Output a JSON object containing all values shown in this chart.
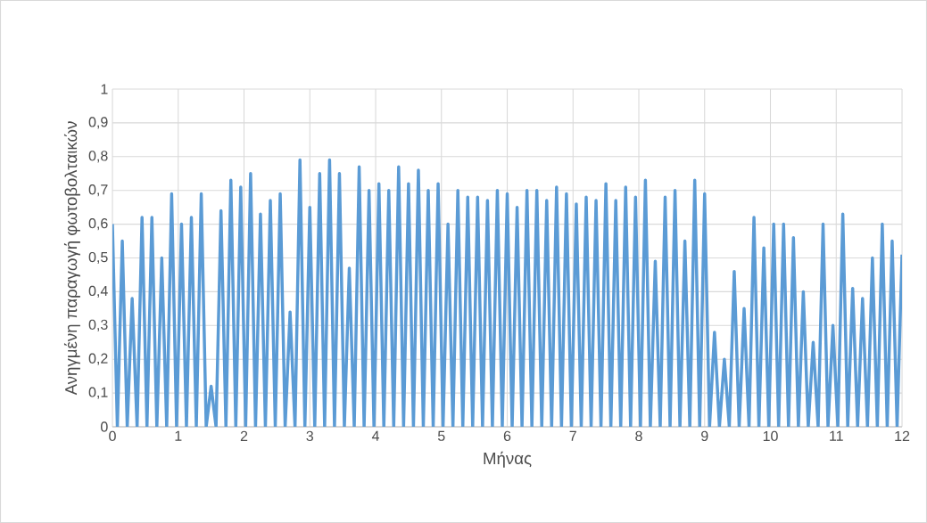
{
  "chart_data": {
    "type": "line",
    "xlabel": "Μήνας",
    "ylabel": "Ανηγμένη παραγωγή φωτοβολταικών",
    "xlim": [
      0,
      12
    ],
    "xticks": [
      0,
      1,
      2,
      3,
      4,
      5,
      6,
      7,
      8,
      9,
      10,
      11,
      12
    ],
    "ylim": [
      0,
      1
    ],
    "yticks": [
      0,
      {
        "value": 0.1,
        "label": "0,1"
      },
      {
        "value": 0.2,
        "label": "0,2"
      },
      {
        "value": 0.3,
        "label": "0,3"
      },
      {
        "value": 0.4,
        "label": "0,4"
      },
      {
        "value": 0.5,
        "label": "0,5"
      },
      {
        "value": 0.6,
        "label": "0,6"
      },
      {
        "value": 0.7,
        "label": "0,7"
      },
      {
        "value": 0.8,
        "label": "0,8"
      },
      {
        "value": 0.9,
        "label": "0,9"
      },
      1
    ],
    "grid": true,
    "marker": "none",
    "line_style": "solid",
    "x": [
      0,
      0.075,
      0.15,
      0.225,
      0.3,
      0.375,
      0.45,
      0.525,
      0.6,
      0.675,
      0.75,
      0.825,
      0.9,
      0.975,
      1.05,
      1.125,
      1.2,
      1.275,
      1.35,
      1.425,
      1.5,
      1.575,
      1.65,
      1.725,
      1.8,
      1.875,
      1.95,
      2.025,
      2.1,
      2.175,
      2.25,
      2.325,
      2.4,
      2.475,
      2.55,
      2.625,
      2.7,
      2.775,
      2.85,
      2.925,
      3,
      3.075,
      3.15,
      3.225,
      3.3,
      3.375,
      3.45,
      3.525,
      3.6,
      3.675,
      3.75,
      3.825,
      3.9,
      3.975,
      4.05,
      4.125,
      4.2,
      4.275,
      4.35,
      4.425,
      4.5,
      4.575,
      4.65,
      4.725,
      4.8,
      4.875,
      4.95,
      5.025,
      5.1,
      5.175,
      5.25,
      5.325,
      5.4,
      5.475,
      5.55,
      5.625,
      5.7,
      5.775,
      5.85,
      5.925,
      6,
      6.075,
      6.15,
      6.225,
      6.3,
      6.375,
      6.45,
      6.525,
      6.6,
      6.675,
      6.75,
      6.825,
      6.9,
      6.975,
      7.05,
      7.125,
      7.2,
      7.275,
      7.35,
      7.425,
      7.5,
      7.575,
      7.65,
      7.725,
      7.8,
      7.875,
      7.95,
      8.025,
      8.1,
      8.175,
      8.25,
      8.325,
      8.4,
      8.475,
      8.55,
      8.625,
      8.7,
      8.775,
      8.85,
      8.925,
      9,
      9.075,
      9.15,
      9.225,
      9.3,
      9.375,
      9.45,
      9.525,
      9.6,
      9.675,
      9.75,
      9.825,
      9.9,
      9.975,
      10.05,
      10.125,
      10.2,
      10.275,
      10.35,
      10.425,
      10.5,
      10.575,
      10.65,
      10.725,
      10.8,
      10.875,
      10.95,
      11.025,
      11.1,
      11.175,
      11.25,
      11.325,
      11.4,
      11.475,
      11.55,
      11.625,
      11.7,
      11.775,
      11.85,
      11.925,
      12
    ],
    "series": [
      {
        "color": "#5b9bd5",
        "values": [
          0.6,
          0,
          0.55,
          0,
          0.38,
          0,
          0.62,
          0,
          0.62,
          0,
          0.5,
          0,
          0.69,
          0,
          0.6,
          0,
          0.62,
          0,
          0.69,
          0,
          0.12,
          0,
          0.64,
          0,
          0.73,
          0,
          0.71,
          0,
          0.75,
          0,
          0.63,
          0,
          0.67,
          0,
          0.69,
          0,
          0.34,
          0,
          0.79,
          0,
          0.65,
          0,
          0.75,
          0,
          0.79,
          0,
          0.75,
          0,
          0.47,
          0,
          0.77,
          0,
          0.7,
          0,
          0.72,
          0,
          0.7,
          0,
          0.77,
          0,
          0.72,
          0,
          0.76,
          0,
          0.7,
          0,
          0.72,
          0,
          0.6,
          0,
          0.7,
          0,
          0.68,
          0,
          0.68,
          0,
          0.67,
          0,
          0.7,
          0,
          0.69,
          0,
          0.65,
          0,
          0.7,
          0,
          0.7,
          0,
          0.67,
          0,
          0.71,
          0,
          0.69,
          0,
          0.66,
          0,
          0.68,
          0,
          0.67,
          0,
          0.72,
          0,
          0.67,
          0,
          0.71,
          0,
          0.68,
          0,
          0.73,
          0,
          0.49,
          0,
          0.68,
          0,
          0.7,
          0,
          0.55,
          0,
          0.73,
          0,
          0.69,
          0,
          0.28,
          0,
          0.2,
          0,
          0.46,
          0,
          0.35,
          0,
          0.62,
          0,
          0.53,
          0,
          0.6,
          0,
          0.6,
          0,
          0.56,
          0,
          0.4,
          0,
          0.25,
          0,
          0.6,
          0,
          0.3,
          0,
          0.63,
          0,
          0.41,
          0,
          0.38,
          0,
          0.5,
          0,
          0.6,
          0,
          0.55,
          0,
          0.51
        ]
      }
    ]
  }
}
